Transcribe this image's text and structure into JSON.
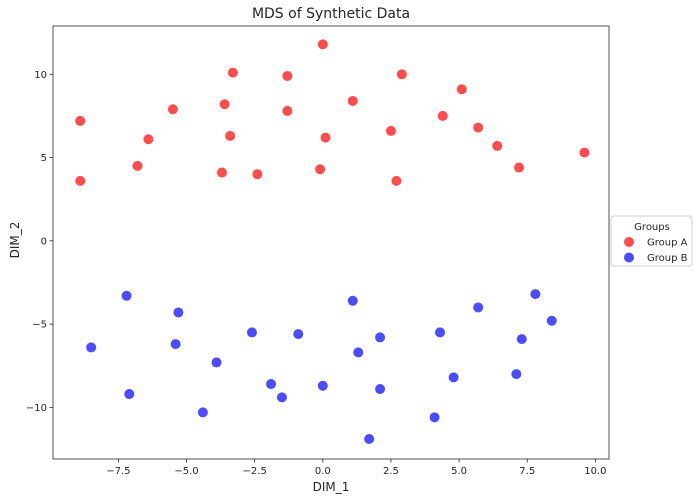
{
  "chart_data": {
    "type": "scatter",
    "title": "MDS of Synthetic Data",
    "xlabel": "DIM_1",
    "ylabel": "DIM_2",
    "xlim": [
      -9.9,
      10.5
    ],
    "ylim": [
      -13.1,
      12.9
    ],
    "xticks": [
      -7.5,
      -5.0,
      -2.5,
      0.0,
      2.5,
      5.0,
      7.5,
      10.0
    ],
    "xtick_labels": [
      "−7.5",
      "−5.0",
      "−2.5",
      "0.0",
      "2.5",
      "5.0",
      "7.5",
      "10.0"
    ],
    "yticks": [
      -10,
      -5,
      0,
      5,
      10
    ],
    "ytick_labels": [
      "−10",
      "−5",
      "0",
      "5",
      "10"
    ],
    "grid": false,
    "legend": {
      "title": "Groups",
      "placement": "right"
    },
    "series": [
      {
        "name": "Group A",
        "color": "#ff0000",
        "points": [
          [
            -8.9,
            7.2
          ],
          [
            -8.9,
            3.6
          ],
          [
            -6.8,
            4.5
          ],
          [
            -6.4,
            6.1
          ],
          [
            -5.5,
            7.9
          ],
          [
            -3.6,
            8.2
          ],
          [
            -3.3,
            10.1
          ],
          [
            -3.4,
            6.3
          ],
          [
            -3.7,
            4.1
          ],
          [
            -2.4,
            4.0
          ],
          [
            -1.3,
            9.9
          ],
          [
            -1.3,
            7.8
          ],
          [
            0.0,
            11.8
          ],
          [
            0.1,
            6.2
          ],
          [
            -0.1,
            4.3
          ],
          [
            1.1,
            8.4
          ],
          [
            2.5,
            6.6
          ],
          [
            2.7,
            3.6
          ],
          [
            2.9,
            10.0
          ],
          [
            4.4,
            7.5
          ],
          [
            5.1,
            9.1
          ],
          [
            5.7,
            6.8
          ],
          [
            6.4,
            5.7
          ],
          [
            7.2,
            4.4
          ],
          [
            9.6,
            5.3
          ]
        ]
      },
      {
        "name": "Group B",
        "color": "#0000ff",
        "points": [
          [
            -8.5,
            -6.4
          ],
          [
            -7.2,
            -3.3
          ],
          [
            -7.1,
            -9.2
          ],
          [
            -5.3,
            -4.3
          ],
          [
            -5.4,
            -6.2
          ],
          [
            -3.9,
            -7.3
          ],
          [
            -4.4,
            -10.3
          ],
          [
            -2.6,
            -5.5
          ],
          [
            -1.9,
            -8.6
          ],
          [
            -1.5,
            -9.4
          ],
          [
            -0.9,
            -5.6
          ],
          [
            0.0,
            -8.7
          ],
          [
            1.1,
            -3.6
          ],
          [
            1.3,
            -6.7
          ],
          [
            2.1,
            -5.8
          ],
          [
            2.1,
            -8.9
          ],
          [
            1.7,
            -11.9
          ],
          [
            4.3,
            -5.5
          ],
          [
            4.1,
            -10.6
          ],
          [
            4.8,
            -8.2
          ],
          [
            5.7,
            -4.0
          ],
          [
            7.1,
            -8.0
          ],
          [
            7.3,
            -5.9
          ],
          [
            7.8,
            -3.2
          ],
          [
            8.4,
            -4.8
          ]
        ]
      }
    ]
  }
}
